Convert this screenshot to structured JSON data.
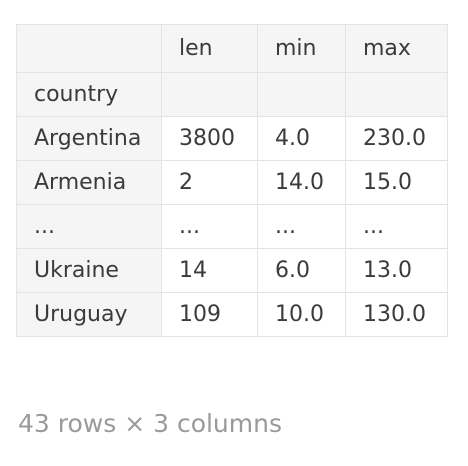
{
  "table": {
    "columns": [
      "",
      "len",
      "min",
      "max"
    ],
    "index_name": "country",
    "rows": [
      [
        "Argentina",
        "3800",
        "4.0",
        "230.0"
      ],
      [
        "Armenia",
        "2",
        "14.0",
        "15.0"
      ],
      [
        "...",
        "...",
        "...",
        "..."
      ],
      [
        "Ukraine",
        "14",
        "6.0",
        "13.0"
      ],
      [
        "Uruguay",
        "109",
        "10.0",
        "130.0"
      ]
    ]
  },
  "shape_info": "43 rows × 3 columns"
}
